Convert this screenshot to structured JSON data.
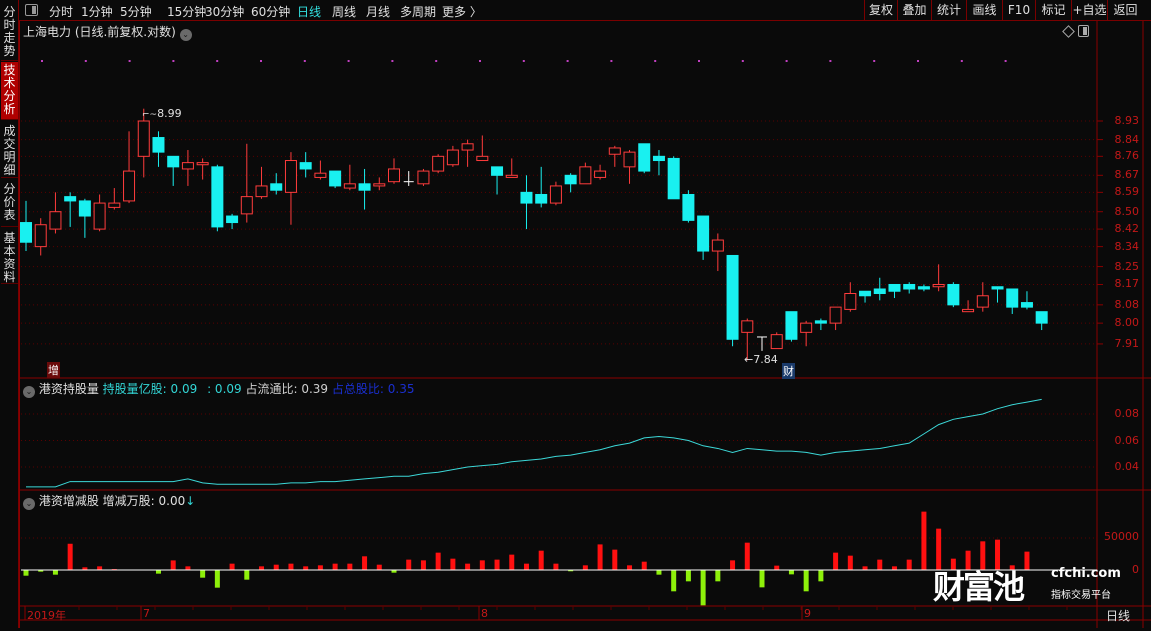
{
  "sidebar": {
    "tabs": [
      {
        "label": "分时走势",
        "active": false
      },
      {
        "label": "技术分析",
        "active": true
      },
      {
        "label": "成交明细",
        "active": false
      },
      {
        "label": "分价表",
        "active": false
      },
      {
        "label": "基本资料",
        "active": false
      }
    ]
  },
  "toolbar": {
    "periods": [
      "分时",
      "1分钟",
      "5分钟",
      "15分钟",
      "30分钟",
      "60分钟",
      "日线",
      "周线",
      "月线",
      "多周期",
      "更多 〉"
    ],
    "active_period": "日线",
    "actions": [
      "复权",
      "叠加",
      "统计",
      "画线",
      "F10",
      "标记",
      "+自选",
      "返回"
    ]
  },
  "main": {
    "title": "上海电力 (日线.前复权.对数)",
    "high_label": "8.99",
    "low_label": "←7.84",
    "badge_zeng": "增",
    "badge_cai": "财",
    "price_ticks": [
      "8.93",
      "8.84",
      "8.76",
      "8.67",
      "8.59",
      "8.50",
      "8.42",
      "8.34",
      "8.25",
      "8.17",
      "8.08",
      "8.00",
      "7.91"
    ]
  },
  "panel2": {
    "name": "港资持股量",
    "field1": "持股量亿股: 0.09",
    "field2": ": 0.09",
    "field3": "占流通比: 0.39",
    "field4": "占总股比: 0.35",
    "ticks": [
      "0.08",
      "0.06",
      "0.04"
    ]
  },
  "panel3": {
    "name": "港资增减股",
    "field1": "增减万股: 0.00",
    "arrow": "↓",
    "ticks": [
      "50000",
      "0"
    ]
  },
  "date_axis": {
    "labels": [
      "2019年",
      "7",
      "8",
      "9"
    ],
    "period_label": "日线"
  },
  "logo": {
    "text": "财富池",
    "domain": "cfchi.com",
    "tagline": "指标交易平台"
  },
  "colors": {
    "up": "#ff3c3c",
    "down": "#19f0f0",
    "grid": "#5a0000",
    "axis": "#c41818",
    "bar_up": "#ff1010",
    "bar_down": "#8ef00a",
    "line": "#3cd8d8"
  },
  "chart_data": [
    {
      "type": "candlestick",
      "yscale": "log",
      "ylim": [
        7.84,
        8.99
      ],
      "ohlc": [
        [
          8.45,
          8.55,
          8.32,
          8.36
        ],
        [
          8.34,
          8.47,
          8.3,
          8.44
        ],
        [
          8.42,
          8.59,
          8.4,
          8.5
        ],
        [
          8.57,
          8.59,
          8.43,
          8.55
        ],
        [
          8.55,
          8.56,
          8.38,
          8.48
        ],
        [
          8.42,
          8.58,
          8.41,
          8.54
        ],
        [
          8.52,
          8.61,
          8.51,
          8.54
        ],
        [
          8.55,
          8.88,
          8.54,
          8.69
        ],
        [
          8.76,
          8.99,
          8.66,
          8.93
        ],
        [
          8.85,
          8.88,
          8.71,
          8.78
        ],
        [
          8.76,
          8.76,
          8.62,
          8.71
        ],
        [
          8.7,
          8.79,
          8.62,
          8.73
        ],
        [
          8.72,
          8.75,
          8.65,
          8.73
        ],
        [
          8.71,
          8.72,
          8.41,
          8.43
        ],
        [
          8.48,
          8.49,
          8.42,
          8.45
        ],
        [
          8.49,
          8.82,
          8.45,
          8.57
        ],
        [
          8.57,
          8.71,
          8.56,
          8.62
        ],
        [
          8.63,
          8.68,
          8.58,
          8.6
        ],
        [
          8.59,
          8.78,
          8.44,
          8.74
        ],
        [
          8.73,
          8.78,
          8.66,
          8.7
        ],
        [
          8.66,
          8.74,
          8.65,
          8.68
        ],
        [
          8.69,
          8.69,
          8.61,
          8.62
        ],
        [
          8.61,
          8.72,
          8.6,
          8.63
        ],
        [
          8.63,
          8.7,
          8.51,
          8.6
        ],
        [
          8.62,
          8.66,
          8.6,
          8.63
        ],
        [
          8.64,
          8.75,
          8.63,
          8.7
        ],
        [
          8.64,
          8.69,
          8.62,
          8.64
        ],
        [
          8.63,
          8.7,
          8.62,
          8.69
        ],
        [
          8.69,
          8.77,
          8.68,
          8.76
        ],
        [
          8.72,
          8.81,
          8.71,
          8.79
        ],
        [
          8.79,
          8.84,
          8.71,
          8.82
        ],
        [
          8.74,
          8.86,
          8.74,
          8.76
        ],
        [
          8.71,
          8.71,
          8.58,
          8.67
        ],
        [
          8.66,
          8.75,
          8.66,
          8.67
        ],
        [
          8.59,
          8.67,
          8.42,
          8.54
        ],
        [
          8.58,
          8.71,
          8.52,
          8.54
        ],
        [
          8.54,
          8.64,
          8.53,
          8.62
        ],
        [
          8.67,
          8.68,
          8.59,
          8.63
        ],
        [
          8.63,
          8.73,
          8.63,
          8.71
        ],
        [
          8.66,
          8.72,
          8.65,
          8.69
        ],
        [
          8.77,
          8.81,
          8.71,
          8.8
        ],
        [
          8.71,
          8.79,
          8.63,
          8.78
        ],
        [
          8.82,
          8.82,
          8.68,
          8.69
        ],
        [
          8.76,
          8.79,
          8.67,
          8.74
        ],
        [
          8.75,
          8.76,
          8.56,
          8.56
        ],
        [
          8.58,
          8.6,
          8.45,
          8.46
        ],
        [
          8.48,
          8.48,
          8.28,
          8.32
        ],
        [
          8.32,
          8.4,
          8.23,
          8.37
        ],
        [
          8.3,
          8.3,
          7.9,
          7.93
        ],
        [
          7.96,
          8.02,
          7.84,
          8.01
        ],
        [
          7.94,
          7.94,
          7.88,
          7.94
        ],
        [
          7.89,
          7.96,
          7.89,
          7.95
        ],
        [
          8.05,
          8.05,
          7.92,
          7.93
        ],
        [
          7.96,
          8.01,
          7.9,
          8.0
        ],
        [
          8.01,
          8.02,
          7.97,
          8.0
        ],
        [
          8.0,
          8.07,
          7.97,
          8.07
        ],
        [
          8.06,
          8.18,
          8.05,
          8.13
        ],
        [
          8.14,
          8.14,
          8.09,
          8.12
        ],
        [
          8.15,
          8.2,
          8.1,
          8.13
        ],
        [
          8.17,
          8.17,
          8.11,
          8.14
        ],
        [
          8.17,
          8.18,
          8.13,
          8.15
        ],
        [
          8.16,
          8.17,
          8.14,
          8.15
        ],
        [
          8.16,
          8.26,
          8.14,
          8.17
        ],
        [
          8.17,
          8.18,
          8.07,
          8.08
        ],
        [
          8.05,
          8.1,
          8.05,
          8.06
        ],
        [
          8.07,
          8.18,
          8.05,
          8.12
        ],
        [
          8.16,
          8.16,
          8.09,
          8.15
        ],
        [
          8.15,
          8.15,
          8.04,
          8.07
        ],
        [
          8.09,
          8.14,
          8.06,
          8.07
        ],
        [
          8.05,
          8.05,
          7.97,
          8.0
        ]
      ]
    },
    {
      "type": "line",
      "name": "港资持股量",
      "ylim": [
        0.02,
        0.1
      ],
      "values": [
        0.025,
        0.025,
        0.025,
        0.029,
        0.029,
        0.029,
        0.029,
        0.029,
        0.029,
        0.029,
        0.029,
        0.031,
        0.028,
        0.027,
        0.027,
        0.027,
        0.027,
        0.027,
        0.028,
        0.028,
        0.029,
        0.029,
        0.03,
        0.031,
        0.032,
        0.033,
        0.033,
        0.035,
        0.036,
        0.038,
        0.04,
        0.041,
        0.042,
        0.044,
        0.045,
        0.046,
        0.048,
        0.049,
        0.051,
        0.053,
        0.056,
        0.058,
        0.062,
        0.063,
        0.062,
        0.06,
        0.056,
        0.054,
        0.051,
        0.054,
        0.053,
        0.052,
        0.052,
        0.051,
        0.049,
        0.051,
        0.052,
        0.053,
        0.054,
        0.056,
        0.058,
        0.065,
        0.072,
        0.076,
        0.078,
        0.08,
        0.084,
        0.087,
        0.089,
        0.091
      ]
    },
    {
      "type": "bar",
      "name": "港资增减股",
      "values": [
        -8900,
        -2600,
        -7300,
        41000,
        4200,
        5700,
        1500,
        0,
        0,
        -5700,
        15000,
        5700,
        -12000,
        -27600,
        9900,
        -15100,
        5700,
        8300,
        9900,
        5700,
        7300,
        9900,
        9900,
        21400,
        8300,
        -4200,
        16200,
        15100,
        27100,
        17700,
        9900,
        15100,
        16200,
        24000,
        9900,
        30200,
        9900,
        -2000,
        7300,
        40000,
        31800,
        7300,
        13000,
        -7300,
        -33300,
        -17700,
        -55200,
        -17700,
        15100,
        42700,
        -27100,
        6800,
        -6800,
        -33300,
        -17700,
        27100,
        22400,
        5700,
        16200,
        5700,
        16200,
        91200,
        64600,
        17700,
        30200,
        44800,
        47400,
        7300,
        28700,
        0
      ]
    }
  ]
}
